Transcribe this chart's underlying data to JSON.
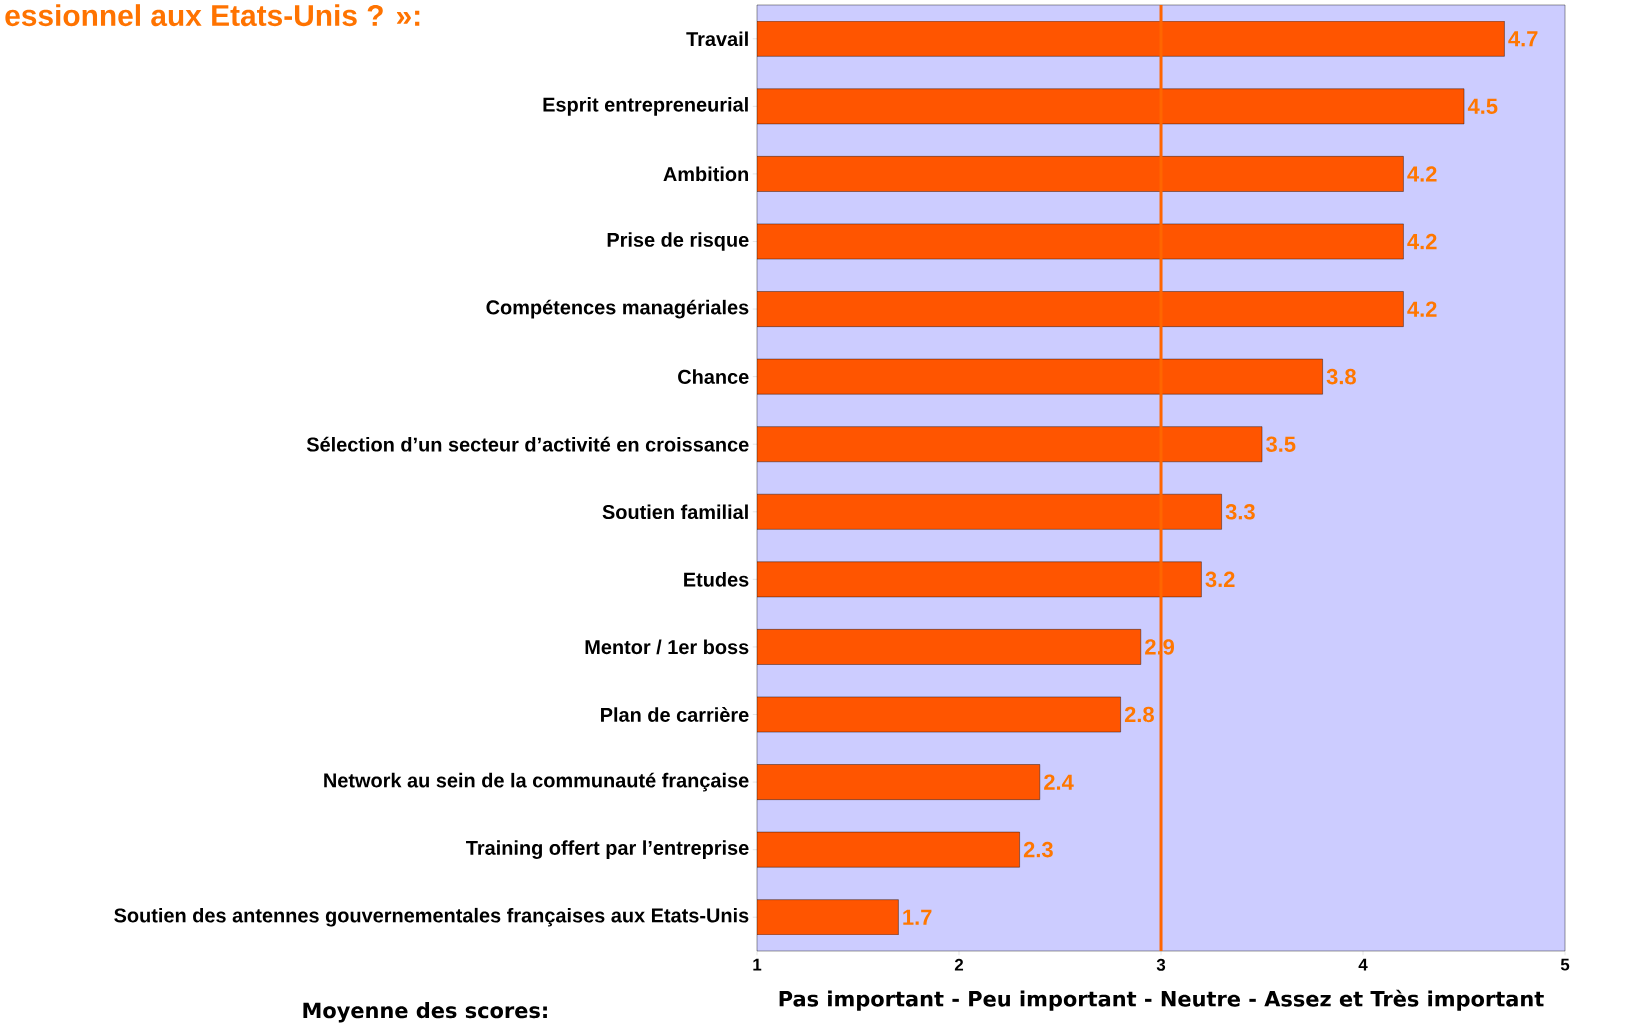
{
  "chart_data": {
    "type": "bar",
    "orientation": "horizontal",
    "title": "essionnel aux Etats-Unis ? »:",
    "categories": [
      "Travail",
      "Esprit entrepreneurial",
      "Ambition",
      "Prise de risque",
      "Compétences managériales",
      "Chance",
      "Sélection d’un secteur d’activité en croissance",
      "Soutien familial",
      "Etudes",
      "Mentor / 1er boss",
      "Plan de carrière",
      "Network au sein de la communauté française",
      "Training offert par l’entreprise",
      "Soutien des antennes gouvernementales françaises aux Etats-Unis"
    ],
    "values": [
      4.7,
      4.5,
      4.2,
      4.2,
      4.2,
      3.8,
      3.5,
      3.3,
      3.2,
      2.9,
      2.8,
      2.4,
      2.3,
      1.7
    ],
    "color": "#ff5500",
    "xlim": [
      1,
      5
    ],
    "xticks": [
      1,
      2,
      3,
      4,
      5
    ],
    "xlabel": "Pas important  -  Peu important  -  Neutre  -   Assez et  Très important",
    "annotations": [
      "Moyenne des scores:"
    ],
    "ref_lines": [
      {
        "axis": "x",
        "value": 3,
        "color": "#ff6600"
      }
    ],
    "data_labels": true
  }
}
